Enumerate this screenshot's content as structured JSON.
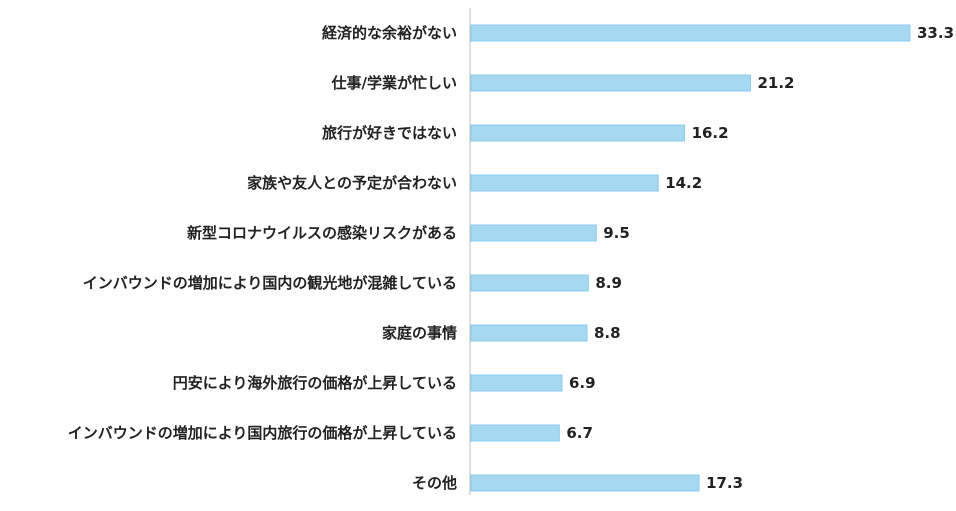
{
  "chart_data": {
    "type": "bar",
    "orientation": "horizontal",
    "categories": [
      "経済的な余裕がない",
      "仕事/学業が忙しい",
      "旅行が好きではない",
      "家族や友人との予定が合わない",
      "新型コロナウイルスの感染リスクがある",
      "インバウンドの増加により国内の観光地が混雑している",
      "家庭の事情",
      "円安により海外旅行の価格が上昇している",
      "インバウンドの増加により国内旅行の価格が上昇している",
      "その他"
    ],
    "values": [
      33.3,
      21.2,
      16.2,
      14.2,
      9.5,
      8.9,
      8.8,
      6.9,
      6.7,
      17.3
    ],
    "value_labels": [
      "33.3",
      "21.2",
      "16.2",
      "14.2",
      "9.5",
      "8.9",
      "8.8",
      "6.9",
      "6.7",
      "17.3"
    ],
    "xlim": [
      0,
      33.3
    ],
    "grid": false,
    "legend": "none",
    "colors": {
      "bar_fill": "#a6d8f2",
      "bar_stroke": "#8ccbed",
      "axis": "#bfbfbf",
      "text": "#222222"
    }
  }
}
